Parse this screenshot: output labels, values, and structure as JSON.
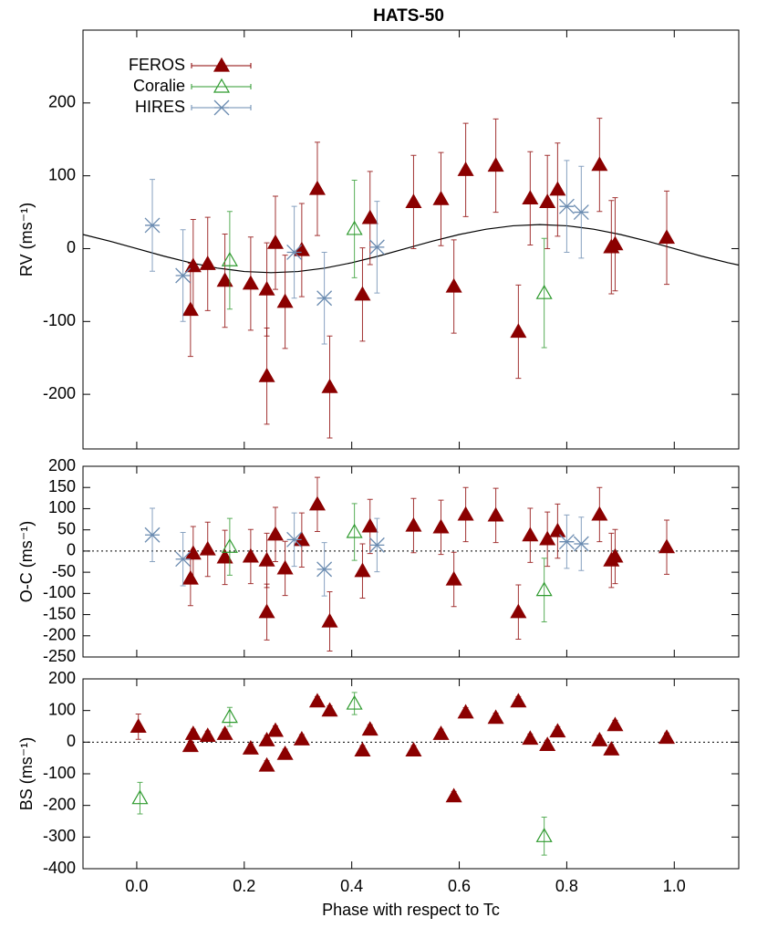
{
  "chart_data": [
    {
      "type": "scatter",
      "title": "HATS-50",
      "y_label": "RV (ms⁻¹)",
      "ylim": [
        -275,
        300
      ],
      "yticks": [
        -200,
        -100,
        0,
        100,
        200
      ],
      "legend": "upper left",
      "series": [
        {
          "name": "FEROS",
          "color": "#8b0000",
          "marker": "filled-triangle",
          "x": [
            0.1,
            0.105,
            0.132,
            0.164,
            0.212,
            0.242,
            0.242,
            0.258,
            0.276,
            0.307,
            0.336,
            0.359,
            0.42,
            0.434,
            0.515,
            0.566,
            0.59,
            0.612,
            0.668,
            0.71,
            0.732,
            0.764,
            0.783,
            0.861,
            0.883,
            0.89,
            0.986
          ],
          "values": [
            -84,
            -24,
            -21,
            -44,
            -48,
            -56,
            -175,
            8,
            -73,
            -2,
            82,
            -190,
            -63,
            42,
            64,
            68,
            -52,
            108,
            114,
            -114,
            69,
            64,
            81,
            115,
            2,
            6,
            15
          ],
          "errors": [
            64,
            64,
            64,
            64,
            64,
            64,
            66,
            64,
            64,
            64,
            64,
            70,
            64,
            64,
            64,
            64,
            64,
            64,
            64,
            64,
            64,
            64,
            64,
            64,
            64,
            64,
            64
          ]
        },
        {
          "name": "Coralie",
          "color": "#2e9a2e",
          "marker": "open-triangle",
          "x": [
            0.173,
            0.405,
            0.758
          ],
          "values": [
            -16,
            27,
            -61
          ],
          "errors": [
            67,
            67,
            75
          ]
        },
        {
          "name": "HIRES",
          "color": "#6a8bb0",
          "marker": "cross",
          "x": [
            0.029,
            0.086,
            0.293,
            0.349,
            0.447,
            0.8,
            0.827
          ],
          "values": [
            32,
            -37,
            -5,
            -68,
            2,
            58,
            50
          ],
          "errors": [
            63,
            63,
            63,
            63,
            63,
            63,
            63
          ]
        }
      ],
      "model_curve": {
        "color": "#000000",
        "x": [
          -0.1,
          -0.05,
          0,
          0.05,
          0.1,
          0.15,
          0.2,
          0.25,
          0.3,
          0.35,
          0.4,
          0.45,
          0.5,
          0.55,
          0.6,
          0.65,
          0.7,
          0.75,
          0.8,
          0.85,
          0.9,
          0.95,
          1.0,
          1.05,
          1.1,
          1.12
        ],
        "values": [
          19.4,
          10.2,
          0,
          -10.2,
          -19.4,
          -26.7,
          -31.4,
          -33,
          -31.4,
          -26.7,
          -19.4,
          -10.2,
          0,
          10.2,
          19.4,
          26.7,
          31.4,
          33,
          31.4,
          26.7,
          19.4,
          10.2,
          0,
          -10.2,
          -19.4,
          -22.6
        ]
      }
    },
    {
      "type": "scatter",
      "y_label": "O-C (ms⁻¹)",
      "zero_line": true,
      "ylim": [
        -250,
        200
      ],
      "yticks": [
        -250,
        -200,
        -150,
        -100,
        -50,
        0,
        50,
        100,
        150,
        200
      ],
      "series": [
        {
          "color": "#8b0000",
          "marker": "filled-triangle",
          "x": [
            0.1,
            0.105,
            0.132,
            0.164,
            0.212,
            0.242,
            0.242,
            0.258,
            0.276,
            0.307,
            0.336,
            0.359,
            0.42,
            0.434,
            0.515,
            0.566,
            0.59,
            0.612,
            0.668,
            0.71,
            0.732,
            0.764,
            0.783,
            0.861,
            0.883,
            0.89,
            0.986
          ],
          "values": [
            -65,
            -6,
            4,
            -15,
            -13,
            -22,
            -144,
            39,
            -41,
            26,
            110,
            -166,
            -47,
            58,
            60,
            56,
            -67,
            86,
            84,
            -144,
            37,
            28,
            47,
            86,
            -22,
            -13,
            9
          ],
          "errors": [
            64,
            64,
            64,
            64,
            64,
            64,
            66,
            64,
            64,
            64,
            64,
            70,
            64,
            64,
            64,
            64,
            64,
            64,
            64,
            64,
            64,
            64,
            64,
            64,
            64,
            64,
            64
          ]
        },
        {
          "color": "#2e9a2e",
          "marker": "open-triangle",
          "x": [
            0.173,
            0.405,
            0.758
          ],
          "values": [
            10,
            45,
            -92
          ],
          "errors": [
            67,
            67,
            75
          ]
        },
        {
          "color": "#6a8bb0",
          "marker": "cross",
          "x": [
            0.029,
            0.086,
            0.293,
            0.349,
            0.447,
            0.8,
            0.827
          ],
          "values": [
            38,
            -19,
            27,
            -43,
            14,
            22,
            17
          ],
          "errors": [
            63,
            63,
            63,
            63,
            63,
            63,
            63
          ]
        }
      ]
    },
    {
      "type": "scatter",
      "y_label": "BS (ms⁻¹)",
      "zero_line": true,
      "x_label": "Phase with respect to Tc",
      "xlim": [
        -0.1,
        1.12
      ],
      "xticks": [
        {
          "value": 0,
          "label": "0.0"
        },
        0.2,
        0.4,
        0.6,
        0.8,
        {
          "value": 1,
          "label": "1.0"
        }
      ],
      "ylim": [
        -400,
        200
      ],
      "yticks": [
        -400,
        -300,
        -200,
        -100,
        0,
        100,
        200
      ],
      "series": [
        {
          "color": "#8b0000",
          "marker": "filled-triangle",
          "x": [
            0.003,
            0.1,
            0.105,
            0.132,
            0.164,
            0.212,
            0.242,
            0.242,
            0.258,
            0.276,
            0.307,
            0.336,
            0.359,
            0.42,
            0.434,
            0.515,
            0.566,
            0.59,
            0.612,
            0.668,
            0.71,
            0.732,
            0.764,
            0.783,
            0.861,
            0.883,
            0.89,
            0.986
          ],
          "values": [
            49,
            -12,
            26,
            20,
            26,
            -20,
            -74,
            6,
            36,
            -37,
            9,
            129,
            100,
            -26,
            40,
            -26,
            26,
            -171,
            94,
            77,
            129,
            11,
            -9,
            34,
            6,
            -23,
            54,
            14
          ],
          "errors": [
            40,
            15,
            15,
            15,
            15,
            15,
            15,
            15,
            15,
            15,
            15,
            15,
            15,
            15,
            15,
            15,
            15,
            15,
            15,
            15,
            15,
            15,
            15,
            15,
            15,
            15,
            15,
            15
          ]
        },
        {
          "color": "#2e9a2e",
          "marker": "open-triangle",
          "x": [
            0.006,
            0.173,
            0.405,
            0.758
          ],
          "values": [
            -177,
            80,
            122,
            -297
          ],
          "errors": [
            50,
            30,
            35,
            60
          ]
        }
      ]
    }
  ]
}
